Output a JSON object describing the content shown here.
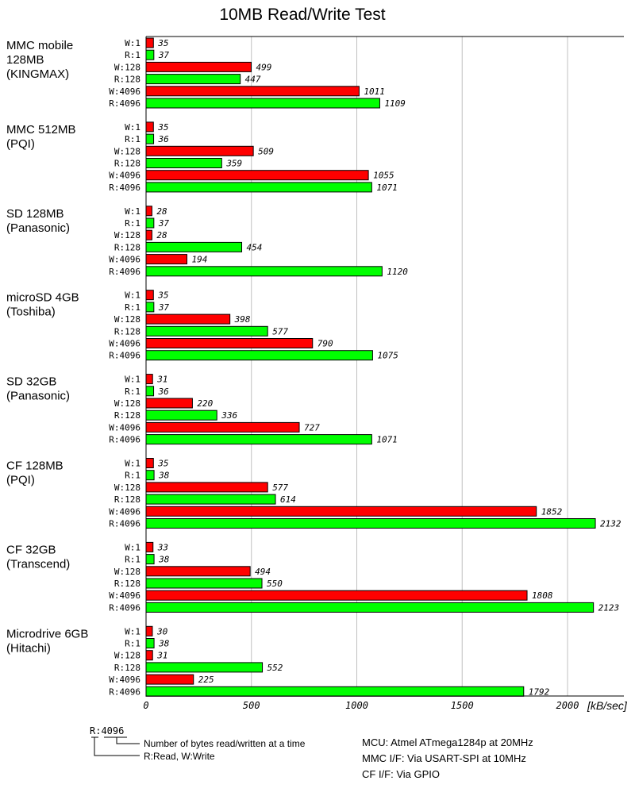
{
  "chart_data": {
    "type": "bar",
    "orientation": "horizontal",
    "title": "10MB Read/Write Test",
    "xlabel": "[kB/sec]",
    "xlim": [
      0,
      2250
    ],
    "xticks": [
      0,
      500,
      1000,
      1500,
      2000
    ],
    "grid": true,
    "row_labels": [
      "W:1",
      "R:1",
      "W:128",
      "R:128",
      "W:4096",
      "R:4096"
    ],
    "colors": {
      "write": "#ff0000",
      "read": "#00ff00",
      "grid": "#c0c0c0"
    },
    "groups": [
      {
        "name": [
          "MMC mobile",
          "128MB",
          "(KINGMAX)"
        ],
        "values": [
          35,
          37,
          499,
          447,
          1011,
          1109
        ]
      },
      {
        "name": [
          "MMC 512MB",
          "(PQI)"
        ],
        "values": [
          35,
          36,
          509,
          359,
          1055,
          1071
        ]
      },
      {
        "name": [
          "SD 128MB",
          "(Panasonic)"
        ],
        "values": [
          28,
          37,
          28,
          454,
          194,
          1120
        ]
      },
      {
        "name": [
          "microSD 4GB",
          "(Toshiba)"
        ],
        "values": [
          35,
          37,
          398,
          577,
          790,
          1075
        ]
      },
      {
        "name": [
          "SD 32GB",
          "(Panasonic)"
        ],
        "values": [
          31,
          36,
          220,
          336,
          727,
          1071
        ]
      },
      {
        "name": [
          "CF 128MB",
          "(PQI)"
        ],
        "values": [
          35,
          38,
          577,
          614,
          1852,
          2132
        ]
      },
      {
        "name": [
          "CF 32GB",
          "(Transcend)"
        ],
        "values": [
          33,
          38,
          494,
          550,
          1808,
          2123
        ]
      },
      {
        "name": [
          "Microdrive 6GB",
          "(Hitachi)"
        ],
        "values": [
          30,
          38,
          31,
          552,
          225,
          1792
        ]
      }
    ]
  },
  "legend": {
    "sample": "R:4096",
    "bytes_note": "Number of bytes read/written at a time",
    "rw_note": "R:Read, W:Write"
  },
  "notes": [
    "MCU: Atmel ATmega1284p at 20MHz",
    "MMC I/F: Via USART-SPI at 10MHz",
    "CF I/F: Via GPIO"
  ]
}
